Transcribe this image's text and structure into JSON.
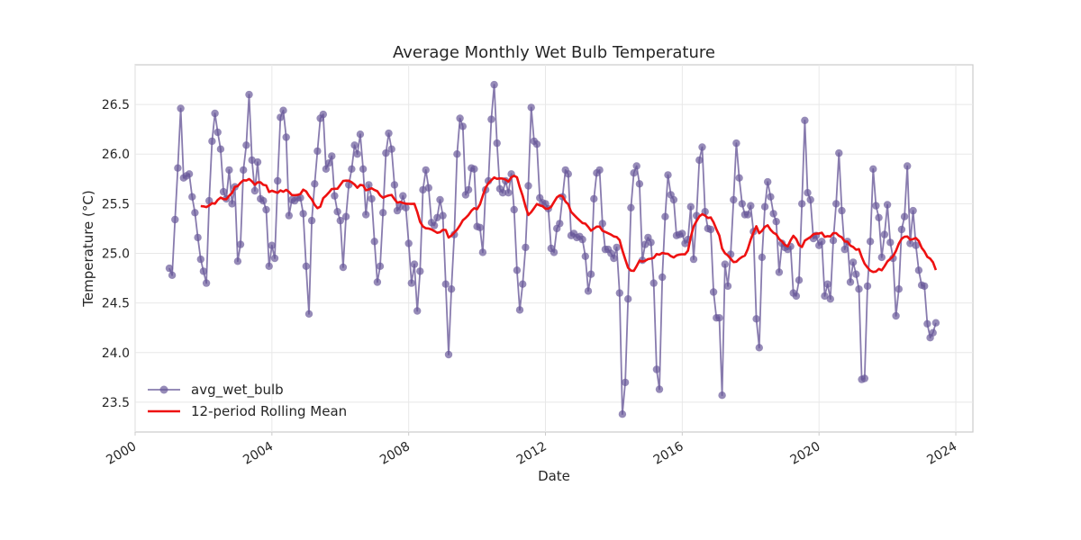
{
  "chart_data": {
    "type": "line",
    "title": "Average Monthly Wet Bulb Temperature",
    "xlabel": "Date",
    "ylabel": "Temperature (°C)",
    "xlim": [
      "2000-01-01",
      "2024-07-01"
    ],
    "ylim": [
      23.2,
      26.9
    ],
    "x_ticks": [
      2000,
      2004,
      2008,
      2012,
      2016,
      2020,
      2024
    ],
    "y_ticks": [
      23.5,
      24.0,
      24.5,
      25.0,
      25.5,
      26.0,
      26.5
    ],
    "y_tick_labels": [
      "23.5",
      "24.0",
      "24.5",
      "25.0",
      "25.5",
      "26.0",
      "26.5"
    ],
    "grid": true,
    "legend_position": "lower-left",
    "start": "2001-01",
    "series": [
      {
        "name": "avg_wet_bulb",
        "style": "line-with-markers",
        "color": "#6a5a9a",
        "values": [
          24.85,
          24.78,
          25.34,
          25.86,
          26.46,
          25.76,
          25.78,
          25.8,
          25.57,
          25.41,
          25.16,
          24.94,
          24.82,
          24.7,
          25.53,
          26.13,
          26.41,
          26.22,
          26.05,
          25.62,
          25.55,
          25.84,
          25.5,
          25.67,
          24.92,
          25.09,
          25.84,
          26.09,
          26.6,
          25.94,
          25.63,
          25.92,
          25.55,
          25.53,
          25.44,
          24.87,
          25.08,
          24.95,
          25.73,
          26.37,
          26.44,
          26.17,
          25.38,
          25.54,
          25.53,
          25.56,
          25.56,
          25.4,
          24.87,
          24.39,
          25.33,
          25.7,
          26.03,
          26.36,
          26.4,
          25.85,
          25.91,
          25.98,
          25.58,
          25.42,
          25.33,
          24.86,
          25.37,
          25.69,
          25.85,
          26.09,
          26.0,
          26.2,
          25.85,
          25.39,
          25.69,
          25.55,
          25.12,
          24.71,
          24.87,
          25.41,
          26.01,
          26.21,
          26.05,
          25.69,
          25.43,
          25.47,
          25.58,
          25.46,
          25.1,
          24.7,
          24.89,
          24.42,
          24.82,
          25.64,
          25.84,
          25.66,
          25.31,
          25.28,
          25.36,
          25.54,
          25.38,
          24.69,
          23.98,
          24.64,
          25.19,
          26.0,
          26.36,
          26.28,
          25.59,
          25.64,
          25.86,
          25.85,
          25.27,
          25.26,
          25.01,
          25.64,
          25.73,
          26.35,
          26.7,
          26.11,
          25.65,
          25.61,
          25.73,
          25.61,
          25.8,
          25.44,
          24.83,
          24.43,
          24.69,
          25.06,
          25.68,
          26.47,
          26.13,
          26.1,
          25.56,
          25.51,
          25.5,
          25.45,
          25.05,
          25.01,
          25.25,
          25.3,
          25.57,
          25.84,
          25.8,
          25.18,
          25.2,
          25.16,
          25.17,
          25.14,
          24.97,
          24.62,
          24.79,
          25.55,
          25.81,
          25.84,
          25.3,
          25.04,
          25.04,
          25.0,
          24.95,
          25.06,
          24.6,
          23.38,
          23.7,
          24.54,
          25.46,
          25.81,
          25.88,
          25.7,
          24.93,
          25.09,
          25.16,
          25.11,
          24.7,
          23.83,
          23.63,
          24.76,
          25.37,
          25.79,
          25.59,
          25.54,
          25.18,
          25.19,
          25.2,
          25.1,
          25.14,
          25.47,
          24.94,
          25.38,
          25.94,
          26.07,
          25.42,
          25.25,
          25.24,
          24.61,
          24.35,
          24.35,
          23.57,
          24.89,
          24.67,
          24.99,
          25.54,
          26.11,
          25.76,
          25.5,
          25.39,
          25.39,
          25.48,
          25.22,
          24.34,
          24.05,
          24.96,
          25.47,
          25.72,
          25.57,
          25.4,
          25.32,
          24.81,
          25.1,
          25.06,
          25.04,
          25.07,
          24.6,
          24.57,
          24.73,
          25.5,
          26.34,
          25.61,
          25.54,
          25.15,
          25.18,
          25.08,
          25.12,
          24.57,
          24.69,
          24.54,
          25.13,
          25.5,
          26.01,
          25.43,
          25.04,
          25.12,
          24.71,
          24.91,
          24.79,
          24.64,
          23.73,
          23.74,
          24.67,
          25.12,
          25.85,
          25.48,
          25.36,
          24.96,
          25.19,
          25.49,
          25.11,
          24.95,
          24.37,
          24.64,
          25.24,
          25.37,
          25.88,
          25.1,
          25.43,
          25.08,
          24.83,
          24.68,
          24.67,
          24.29,
          24.15,
          24.2,
          24.3
        ]
      },
      {
        "name": "12-period Rolling Mean",
        "style": "line",
        "color": "#ee1111",
        "window": 12
      }
    ]
  }
}
